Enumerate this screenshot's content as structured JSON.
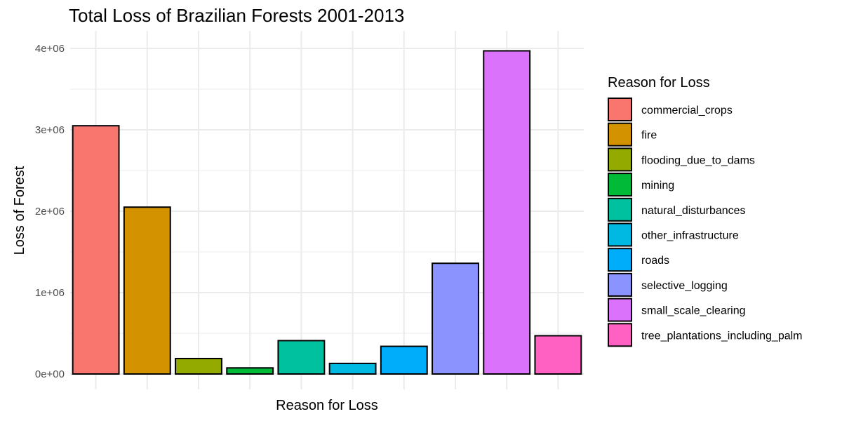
{
  "chart_data": {
    "type": "bar",
    "title": "Total Loss of Brazilian Forests 2001-2013",
    "xlabel": "Reason for Loss",
    "ylabel": "Loss of Forest",
    "ylim": [
      0,
      4000000
    ],
    "yticks": [
      {
        "value": 0,
        "label": "0e+00"
      },
      {
        "value": 1000000,
        "label": "1e+06"
      },
      {
        "value": 2000000,
        "label": "2e+06"
      },
      {
        "value": 3000000,
        "label": "3e+06"
      },
      {
        "value": 4000000,
        "label": "4e+06"
      }
    ],
    "grid": true,
    "legend": {
      "title": "Reason for Loss",
      "position": "right"
    },
    "categories": [
      "commercial_crops",
      "fire",
      "flooding_due_to_dams",
      "mining",
      "natural_disturbances",
      "other_infrastructure",
      "roads",
      "selective_logging",
      "small_scale_clearing",
      "tree_plantations_including_palm"
    ],
    "values": [
      3050000,
      2050000,
      190000,
      75000,
      410000,
      130000,
      340000,
      1360000,
      3970000,
      470000
    ],
    "colors": [
      "#F8766D",
      "#D39200",
      "#93AA00",
      "#00BA38",
      "#00C19F",
      "#00B9E3",
      "#00ADFA",
      "#8B93FF",
      "#DB72FB",
      "#FF61C3"
    ]
  }
}
